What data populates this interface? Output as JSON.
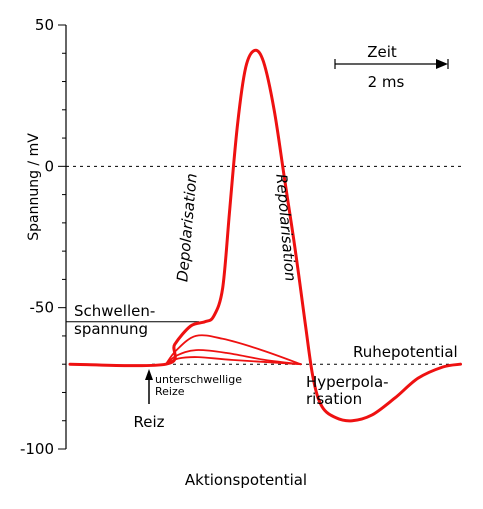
{
  "chart_data": {
    "type": "line",
    "title": "Aktionspotential",
    "ylabel": "Spannung / mV",
    "ylim": [
      -100,
      50
    ],
    "y_ticks": [
      50,
      0,
      -50,
      -100
    ],
    "time_scale": {
      "label": "Zeit",
      "length": "2 ms"
    },
    "reference_lines": [
      {
        "name": "zero",
        "y": 0
      },
      {
        "name": "resting",
        "y": -70
      }
    ],
    "threshold": {
      "y": -55
    },
    "series": [
      {
        "role": "action-potential",
        "points": [
          [
            0,
            -70
          ],
          [
            2.7,
            -70
          ],
          [
            2.95,
            -63
          ],
          [
            3.4,
            -56.5
          ],
          [
            3.8,
            -55
          ],
          [
            4.05,
            -53
          ],
          [
            4.3,
            -43
          ],
          [
            4.5,
            -15
          ],
          [
            4.72,
            15
          ],
          [
            4.95,
            35
          ],
          [
            5.2,
            41
          ],
          [
            5.45,
            37
          ],
          [
            5.75,
            20
          ],
          [
            6.05,
            -5
          ],
          [
            6.35,
            -30
          ],
          [
            6.62,
            -55
          ],
          [
            6.85,
            -75
          ],
          [
            7.1,
            -85
          ],
          [
            7.5,
            -89
          ],
          [
            7.95,
            -90
          ],
          [
            8.5,
            -88
          ],
          [
            9.15,
            -82
          ],
          [
            9.8,
            -75
          ],
          [
            10.5,
            -71
          ],
          [
            11,
            -70
          ]
        ]
      },
      {
        "role": "subthreshold",
        "points": [
          [
            2.7,
            -70
          ],
          [
            3.0,
            -65
          ],
          [
            3.55,
            -60
          ],
          [
            4.3,
            -61
          ],
          [
            5.4,
            -65
          ],
          [
            6.5,
            -70
          ]
        ]
      },
      {
        "role": "subthreshold",
        "points": [
          [
            2.7,
            -70
          ],
          [
            3.0,
            -67
          ],
          [
            3.55,
            -65
          ],
          [
            4.4,
            -66
          ],
          [
            5.5,
            -68.5
          ],
          [
            6.5,
            -70
          ]
        ]
      },
      {
        "role": "subthreshold",
        "points": [
          [
            2.7,
            -70
          ],
          [
            3.05,
            -68
          ],
          [
            3.6,
            -67.5
          ],
          [
            4.6,
            -68.5
          ],
          [
            6.5,
            -70
          ]
        ]
      }
    ],
    "annotations": {
      "threshold_line1": "Schwellen-",
      "threshold_line2": "spannung",
      "resting": "Ruhepotential",
      "depolarization": "Depolarisation",
      "repolarization": "Repolarisation",
      "hyperpol_line1": "Hyperpola-",
      "hyperpol_line2": "risation",
      "subthreshold_line1": "unterschwellige",
      "subthreshold_line2": "Reize",
      "stimulus": "Reiz"
    },
    "colors": {
      "trace": "#ee1111",
      "axes": "#000000"
    },
    "grid": false
  }
}
